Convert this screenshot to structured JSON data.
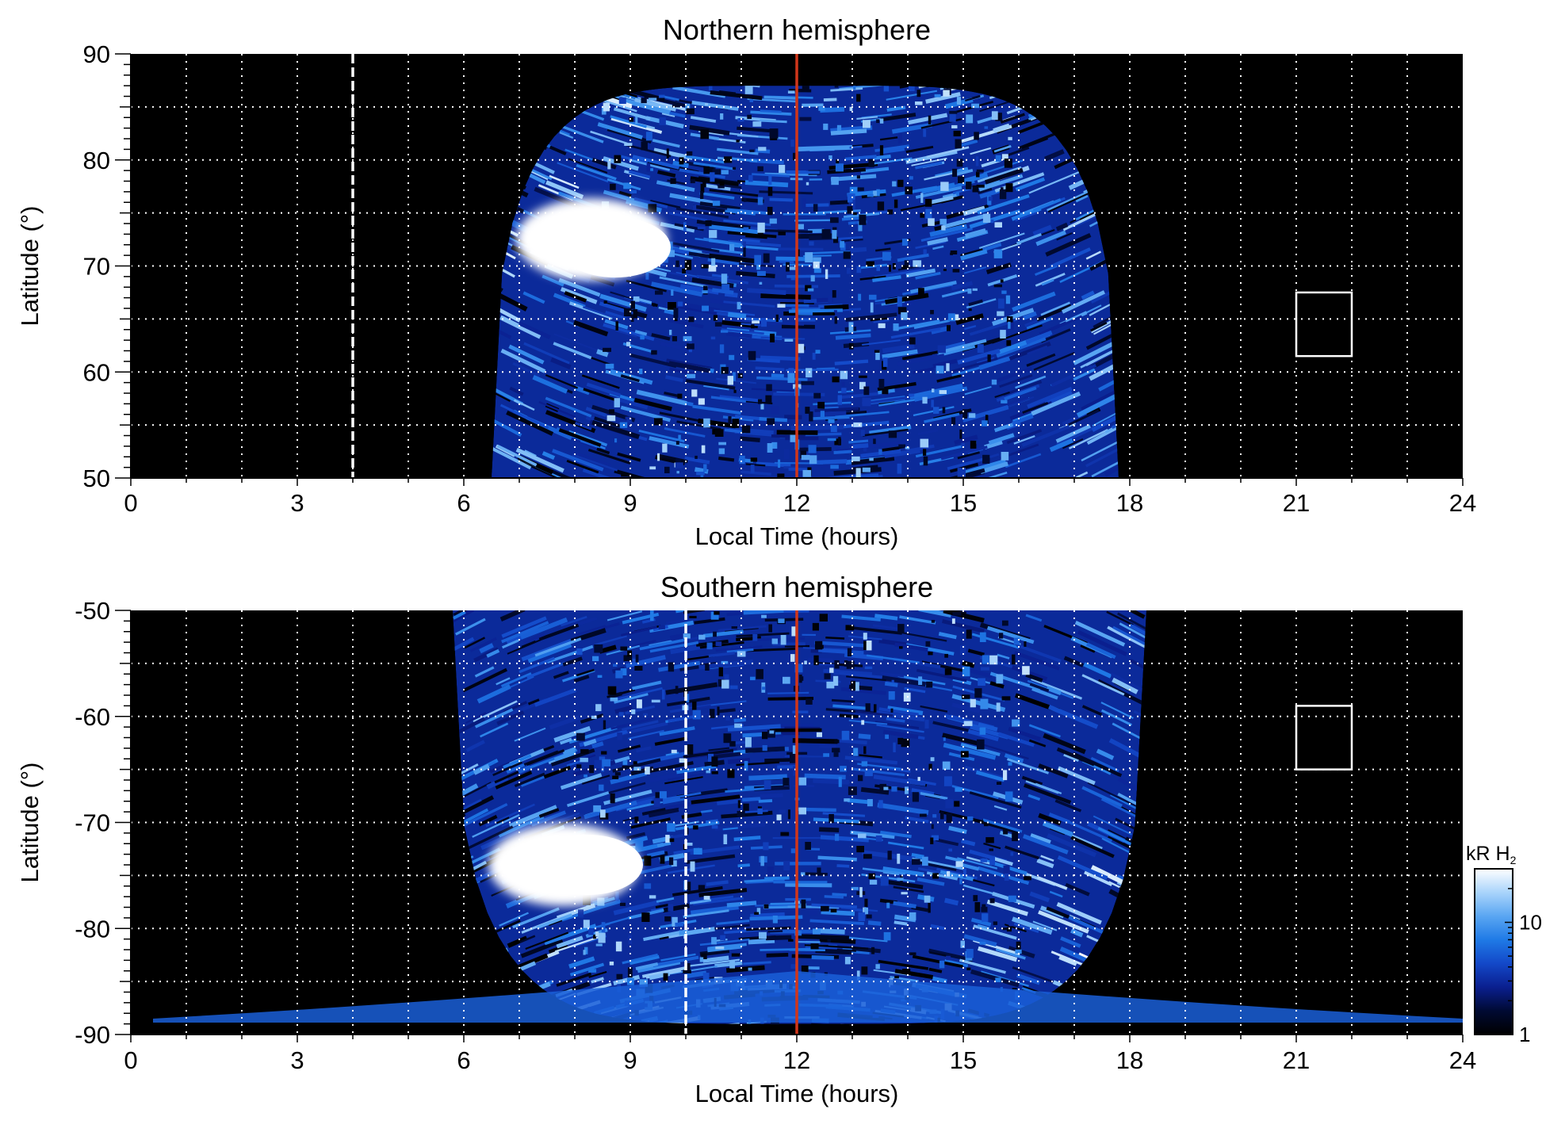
{
  "chart_data": [
    {
      "type": "heatmap",
      "panel_id": "north",
      "title": "Northern hemisphere",
      "xlabel": "Local Time (hours)",
      "ylabel": "Latitude (°)",
      "xlim": [
        0,
        24
      ],
      "ylim": [
        50,
        90
      ],
      "xticks": [
        "0",
        "3",
        "6",
        "9",
        "12",
        "15",
        "18",
        "21",
        "24"
      ],
      "yticks": [
        "50",
        "60",
        "70",
        "80",
        "90"
      ],
      "grid": true,
      "grid_style": "dotted white, every 1 h and every 5°",
      "coverage": {
        "lt_start": 6.5,
        "lt_end": 17.8,
        "lat_edge": 87
      },
      "bright_spot": {
        "lt_center": 8.3,
        "lat_center": 72.5
      },
      "reference_lines": [
        {
          "x": 12,
          "style": "solid",
          "color": "#d0361b"
        },
        {
          "x": 4,
          "style": "dashed",
          "color": "#ffffff"
        }
      ],
      "box": {
        "x": [
          21,
          22
        ],
        "y": [
          61.5,
          67.5
        ],
        "color": "#ffffff"
      }
    },
    {
      "type": "heatmap",
      "panel_id": "south",
      "title": "Southern hemisphere",
      "xlabel": "Local Time (hours)",
      "ylabel": "Latitude (°)",
      "xlim": [
        0,
        24
      ],
      "ylim": [
        -90,
        -50
      ],
      "xticks": [
        "0",
        "3",
        "6",
        "9",
        "12",
        "15",
        "18",
        "21",
        "24"
      ],
      "yticks": [
        "-50",
        "-60",
        "-70",
        "-80",
        "-90"
      ],
      "grid": true,
      "grid_style": "dotted white, every 1 h and every 5°",
      "coverage": {
        "lt_start": 5.8,
        "lt_end": 18.3,
        "lat_edge": -89
      },
      "bright_spot": {
        "lt_center": 7.8,
        "lat_center": -74
      },
      "reference_lines": [
        {
          "x": 12,
          "style": "solid",
          "color": "#d0361b"
        },
        {
          "x": 10,
          "style": "dashed",
          "color": "#ffffff"
        }
      ],
      "box": {
        "x": [
          21,
          22
        ],
        "y": [
          -65,
          -59
        ],
        "color": "#ffffff"
      }
    }
  ],
  "colorbar": {
    "title_main": "kR H",
    "title_sub": "2",
    "tick_labels": [
      "1",
      "10"
    ],
    "tick_values": [
      1,
      10
    ],
    "range": [
      1,
      30
    ],
    "scale": "log",
    "colormap": [
      "#000000",
      "#000a33",
      "#0a1f8f",
      "#1348c8",
      "#1f7ae6",
      "#5aa6f2",
      "#a9d4fb",
      "#ffffff"
    ]
  },
  "colors": {
    "background_plot": "#000000",
    "noon_line": "#d0361b",
    "grid": "#ffffff"
  }
}
